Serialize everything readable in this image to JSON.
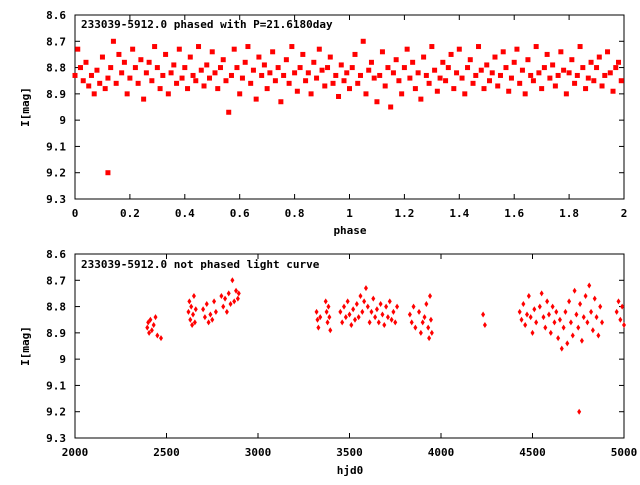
{
  "chart_data": [
    {
      "type": "scatter",
      "title": "233039-5912.0 phased with P=21.6180day",
      "xlabel": "phase",
      "ylabel": "I[mag]",
      "xlim": [
        0,
        2
      ],
      "ylim": [
        8.6,
        9.3
      ],
      "y_inverted": true,
      "grid": false,
      "color": "#ff0000",
      "xticks": [
        "0",
        "0.2",
        "0.4",
        "0.6",
        "0.8",
        "1",
        "1.2",
        "1.4",
        "1.6",
        "1.8",
        "2"
      ],
      "xtick_values": [
        0,
        0.2,
        0.4,
        0.6,
        0.8,
        1.0,
        1.2,
        1.4,
        1.6,
        1.8,
        2.0
      ],
      "yticks": [
        "8.6",
        "8.7",
        "8.8",
        "8.9",
        "9",
        "9.1",
        "9.2",
        "9.3"
      ],
      "ytick_values": [
        8.6,
        8.7,
        8.8,
        8.9,
        9.0,
        9.1,
        9.2,
        9.3
      ],
      "points": [
        [
          0.0,
          8.83
        ],
        [
          0.01,
          8.73
        ],
        [
          0.02,
          8.8
        ],
        [
          0.03,
          8.85
        ],
        [
          0.04,
          8.78
        ],
        [
          0.05,
          8.87
        ],
        [
          0.06,
          8.83
        ],
        [
          0.07,
          8.9
        ],
        [
          0.08,
          8.81
        ],
        [
          0.09,
          8.86
        ],
        [
          0.1,
          8.76
        ],
        [
          0.11,
          8.88
        ],
        [
          0.12,
          8.84
        ],
        [
          0.12,
          9.2
        ],
        [
          0.13,
          8.8
        ],
        [
          0.14,
          8.7
        ],
        [
          0.15,
          8.86
        ],
        [
          0.16,
          8.75
        ],
        [
          0.17,
          8.82
        ],
        [
          0.18,
          8.78
        ],
        [
          0.19,
          8.9
        ],
        [
          0.2,
          8.84
        ],
        [
          0.21,
          8.73
        ],
        [
          0.22,
          8.8
        ],
        [
          0.23,
          8.86
        ],
        [
          0.24,
          8.77
        ],
        [
          0.25,
          8.92
        ],
        [
          0.26,
          8.82
        ],
        [
          0.27,
          8.78
        ],
        [
          0.28,
          8.85
        ],
        [
          0.29,
          8.72
        ],
        [
          0.3,
          8.8
        ],
        [
          0.31,
          8.88
        ],
        [
          0.32,
          8.83
        ],
        [
          0.33,
          8.75
        ],
        [
          0.34,
          8.9
        ],
        [
          0.35,
          8.82
        ],
        [
          0.36,
          8.79
        ],
        [
          0.37,
          8.86
        ],
        [
          0.38,
          8.73
        ],
        [
          0.39,
          8.84
        ],
        [
          0.4,
          8.8
        ],
        [
          0.41,
          8.88
        ],
        [
          0.42,
          8.76
        ],
        [
          0.43,
          8.83
        ],
        [
          0.44,
          8.85
        ],
        [
          0.45,
          8.72
        ],
        [
          0.46,
          8.81
        ],
        [
          0.47,
          8.87
        ],
        [
          0.48,
          8.79
        ],
        [
          0.49,
          8.84
        ],
        [
          0.5,
          8.74
        ],
        [
          0.51,
          8.82
        ],
        [
          0.52,
          8.88
        ],
        [
          0.53,
          8.8
        ],
        [
          0.54,
          8.77
        ],
        [
          0.55,
          8.85
        ],
        [
          0.56,
          8.97
        ],
        [
          0.57,
          8.83
        ],
        [
          0.58,
          8.73
        ],
        [
          0.59,
          8.8
        ],
        [
          0.6,
          8.9
        ],
        [
          0.61,
          8.84
        ],
        [
          0.62,
          8.78
        ],
        [
          0.63,
          8.72
        ],
        [
          0.64,
          8.86
        ],
        [
          0.65,
          8.81
        ],
        [
          0.66,
          8.92
        ],
        [
          0.67,
          8.76
        ],
        [
          0.68,
          8.83
        ],
        [
          0.69,
          8.79
        ],
        [
          0.7,
          8.88
        ],
        [
          0.71,
          8.82
        ],
        [
          0.72,
          8.74
        ],
        [
          0.73,
          8.85
        ],
        [
          0.74,
          8.8
        ],
        [
          0.75,
          8.93
        ],
        [
          0.76,
          8.83
        ],
        [
          0.77,
          8.77
        ],
        [
          0.78,
          8.86
        ],
        [
          0.79,
          8.72
        ],
        [
          0.8,
          8.82
        ],
        [
          0.81,
          8.89
        ],
        [
          0.82,
          8.8
        ],
        [
          0.83,
          8.75
        ],
        [
          0.84,
          8.85
        ],
        [
          0.85,
          8.82
        ],
        [
          0.86,
          8.9
        ],
        [
          0.87,
          8.78
        ],
        [
          0.88,
          8.84
        ],
        [
          0.89,
          8.73
        ],
        [
          0.9,
          8.81
        ],
        [
          0.91,
          8.87
        ],
        [
          0.92,
          8.8
        ],
        [
          0.93,
          8.76
        ],
        [
          0.94,
          8.86
        ],
        [
          0.95,
          8.83
        ],
        [
          0.96,
          8.91
        ],
        [
          0.97,
          8.79
        ],
        [
          0.98,
          8.85
        ],
        [
          0.99,
          8.82
        ],
        [
          1.0,
          8.88
        ],
        [
          1.01,
          8.8
        ],
        [
          1.02,
          8.75
        ],
        [
          1.03,
          8.86
        ],
        [
          1.04,
          8.83
        ],
        [
          1.05,
          8.7
        ],
        [
          1.06,
          8.9
        ],
        [
          1.07,
          8.81
        ],
        [
          1.08,
          8.78
        ],
        [
          1.09,
          8.84
        ],
        [
          1.1,
          8.93
        ],
        [
          1.11,
          8.83
        ],
        [
          1.12,
          8.74
        ],
        [
          1.13,
          8.87
        ],
        [
          1.14,
          8.8
        ],
        [
          1.15,
          8.95
        ],
        [
          1.16,
          8.82
        ],
        [
          1.17,
          8.77
        ],
        [
          1.18,
          8.85
        ],
        [
          1.19,
          8.9
        ],
        [
          1.2,
          8.8
        ],
        [
          1.21,
          8.73
        ],
        [
          1.22,
          8.84
        ],
        [
          1.23,
          8.78
        ],
        [
          1.24,
          8.88
        ],
        [
          1.25,
          8.82
        ],
        [
          1.26,
          8.92
        ],
        [
          1.27,
          8.76
        ],
        [
          1.28,
          8.83
        ],
        [
          1.29,
          8.86
        ],
        [
          1.3,
          8.72
        ],
        [
          1.31,
          8.81
        ],
        [
          1.32,
          8.89
        ],
        [
          1.33,
          8.84
        ],
        [
          1.34,
          8.78
        ],
        [
          1.35,
          8.85
        ],
        [
          1.36,
          8.8
        ],
        [
          1.37,
          8.75
        ],
        [
          1.38,
          8.88
        ],
        [
          1.39,
          8.82
        ],
        [
          1.4,
          8.73
        ],
        [
          1.41,
          8.84
        ],
        [
          1.42,
          8.9
        ],
        [
          1.43,
          8.8
        ],
        [
          1.44,
          8.77
        ],
        [
          1.45,
          8.86
        ],
        [
          1.46,
          8.83
        ],
        [
          1.47,
          8.72
        ],
        [
          1.48,
          8.81
        ],
        [
          1.49,
          8.88
        ],
        [
          1.5,
          8.79
        ],
        [
          1.51,
          8.85
        ],
        [
          1.52,
          8.82
        ],
        [
          1.53,
          8.76
        ],
        [
          1.54,
          8.87
        ],
        [
          1.55,
          8.83
        ],
        [
          1.56,
          8.74
        ],
        [
          1.57,
          8.8
        ],
        [
          1.58,
          8.89
        ],
        [
          1.59,
          8.84
        ],
        [
          1.6,
          8.78
        ],
        [
          1.61,
          8.73
        ],
        [
          1.62,
          8.86
        ],
        [
          1.63,
          8.81
        ],
        [
          1.64,
          8.9
        ],
        [
          1.65,
          8.77
        ],
        [
          1.66,
          8.83
        ],
        [
          1.67,
          8.85
        ],
        [
          1.68,
          8.72
        ],
        [
          1.69,
          8.82
        ],
        [
          1.7,
          8.88
        ],
        [
          1.71,
          8.8
        ],
        [
          1.72,
          8.75
        ],
        [
          1.73,
          8.84
        ],
        [
          1.74,
          8.79
        ],
        [
          1.75,
          8.87
        ],
        [
          1.76,
          8.83
        ],
        [
          1.77,
          8.74
        ],
        [
          1.78,
          8.81
        ],
        [
          1.79,
          8.9
        ],
        [
          1.8,
          8.82
        ],
        [
          1.81,
          8.77
        ],
        [
          1.82,
          8.86
        ],
        [
          1.83,
          8.83
        ],
        [
          1.84,
          8.72
        ],
        [
          1.85,
          8.8
        ],
        [
          1.86,
          8.88
        ],
        [
          1.87,
          8.84
        ],
        [
          1.88,
          8.78
        ],
        [
          1.89,
          8.85
        ],
        [
          1.9,
          8.8
        ],
        [
          1.91,
          8.76
        ],
        [
          1.92,
          8.87
        ],
        [
          1.93,
          8.83
        ],
        [
          1.94,
          8.74
        ],
        [
          1.95,
          8.82
        ],
        [
          1.96,
          8.89
        ],
        [
          1.97,
          8.8
        ],
        [
          1.98,
          8.78
        ],
        [
          1.99,
          8.85
        ]
      ]
    },
    {
      "type": "scatter",
      "title": "233039-5912.0 not phased light curve",
      "xlabel": "hjd0",
      "ylabel": "I[mag]",
      "xlim": [
        2000,
        5000
      ],
      "ylim": [
        8.6,
        9.3
      ],
      "y_inverted": true,
      "grid": false,
      "color": "#ff0000",
      "xticks": [
        "2000",
        "2500",
        "3000",
        "3500",
        "4000",
        "4500",
        "5000"
      ],
      "xtick_values": [
        2000,
        2500,
        3000,
        3500,
        4000,
        4500,
        5000
      ],
      "yticks": [
        "8.6",
        "8.7",
        "8.8",
        "8.9",
        "9",
        "9.1",
        "9.2",
        "9.3"
      ],
      "ytick_values": [
        8.6,
        8.7,
        8.8,
        8.9,
        9.0,
        9.1,
        9.2,
        9.3
      ],
      "points": [
        [
          2395,
          8.88
        ],
        [
          2400,
          8.86
        ],
        [
          2405,
          8.9
        ],
        [
          2412,
          8.85
        ],
        [
          2420,
          8.89
        ],
        [
          2430,
          8.87
        ],
        [
          2440,
          8.84
        ],
        [
          2450,
          8.91
        ],
        [
          2470,
          8.92
        ],
        [
          2620,
          8.82
        ],
        [
          2625,
          8.78
        ],
        [
          2630,
          8.85
        ],
        [
          2635,
          8.8
        ],
        [
          2640,
          8.87
        ],
        [
          2645,
          8.83
        ],
        [
          2650,
          8.76
        ],
        [
          2655,
          8.86
        ],
        [
          2660,
          8.81
        ],
        [
          2700,
          8.81
        ],
        [
          2710,
          8.84
        ],
        [
          2720,
          8.79
        ],
        [
          2730,
          8.86
        ],
        [
          2740,
          8.83
        ],
        [
          2750,
          8.85
        ],
        [
          2760,
          8.78
        ],
        [
          2770,
          8.82
        ],
        [
          2800,
          8.76
        ],
        [
          2810,
          8.8
        ],
        [
          2820,
          8.77
        ],
        [
          2830,
          8.82
        ],
        [
          2840,
          8.75
        ],
        [
          2850,
          8.79
        ],
        [
          2860,
          8.7
        ],
        [
          2870,
          8.78
        ],
        [
          2880,
          8.74
        ],
        [
          2890,
          8.77
        ],
        [
          2895,
          8.75
        ],
        [
          3320,
          8.82
        ],
        [
          3325,
          8.85
        ],
        [
          3330,
          8.88
        ],
        [
          3340,
          8.84
        ],
        [
          3370,
          8.78
        ],
        [
          3375,
          8.82
        ],
        [
          3380,
          8.86
        ],
        [
          3385,
          8.8
        ],
        [
          3390,
          8.84
        ],
        [
          3395,
          8.89
        ],
        [
          3450,
          8.82
        ],
        [
          3460,
          8.86
        ],
        [
          3470,
          8.8
        ],
        [
          3480,
          8.84
        ],
        [
          3490,
          8.78
        ],
        [
          3500,
          8.83
        ],
        [
          3510,
          8.87
        ],
        [
          3520,
          8.81
        ],
        [
          3530,
          8.85
        ],
        [
          3540,
          8.79
        ],
        [
          3550,
          8.84
        ],
        [
          3560,
          8.76
        ],
        [
          3570,
          8.82
        ],
        [
          3580,
          8.78
        ],
        [
          3590,
          8.73
        ],
        [
          3600,
          8.8
        ],
        [
          3610,
          8.86
        ],
        [
          3620,
          8.82
        ],
        [
          3630,
          8.77
        ],
        [
          3640,
          8.84
        ],
        [
          3650,
          8.81
        ],
        [
          3660,
          8.86
        ],
        [
          3670,
          8.79
        ],
        [
          3680,
          8.83
        ],
        [
          3690,
          8.87
        ],
        [
          3700,
          8.8
        ],
        [
          3710,
          8.84
        ],
        [
          3720,
          8.78
        ],
        [
          3730,
          8.85
        ],
        [
          3740,
          8.82
        ],
        [
          3750,
          8.86
        ],
        [
          3760,
          8.8
        ],
        [
          3830,
          8.83
        ],
        [
          3840,
          8.86
        ],
        [
          3850,
          8.8
        ],
        [
          3860,
          8.88
        ],
        [
          3880,
          8.82
        ],
        [
          3890,
          8.9
        ],
        [
          3900,
          8.86
        ],
        [
          3910,
          8.84
        ],
        [
          3920,
          8.79
        ],
        [
          3930,
          8.88
        ],
        [
          3935,
          8.92
        ],
        [
          3940,
          8.76
        ],
        [
          3945,
          8.85
        ],
        [
          3950,
          8.9
        ],
        [
          4230,
          8.83
        ],
        [
          4240,
          8.87
        ],
        [
          4430,
          8.82
        ],
        [
          4440,
          8.85
        ],
        [
          4450,
          8.79
        ],
        [
          4460,
          8.87
        ],
        [
          4470,
          8.83
        ],
        [
          4480,
          8.76
        ],
        [
          4490,
          8.84
        ],
        [
          4500,
          8.9
        ],
        [
          4510,
          8.81
        ],
        [
          4520,
          8.86
        ],
        [
          4540,
          8.8
        ],
        [
          4550,
          8.75
        ],
        [
          4560,
          8.84
        ],
        [
          4570,
          8.88
        ],
        [
          4580,
          8.78
        ],
        [
          4590,
          8.83
        ],
        [
          4600,
          8.9
        ],
        [
          4610,
          8.8
        ],
        [
          4620,
          8.86
        ],
        [
          4630,
          8.82
        ],
        [
          4640,
          8.92
        ],
        [
          4650,
          8.85
        ],
        [
          4660,
          8.96
        ],
        [
          4670,
          8.88
        ],
        [
          4680,
          8.82
        ],
        [
          4690,
          8.94
        ],
        [
          4700,
          8.78
        ],
        [
          4710,
          8.86
        ],
        [
          4720,
          8.91
        ],
        [
          4730,
          8.74
        ],
        [
          4740,
          8.83
        ],
        [
          4750,
          8.88
        ],
        [
          4755,
          9.2
        ],
        [
          4760,
          8.79
        ],
        [
          4770,
          8.93
        ],
        [
          4780,
          8.84
        ],
        [
          4790,
          8.76
        ],
        [
          4800,
          8.86
        ],
        [
          4810,
          8.72
        ],
        [
          4820,
          8.82
        ],
        [
          4830,
          8.89
        ],
        [
          4840,
          8.77
        ],
        [
          4850,
          8.84
        ],
        [
          4860,
          8.91
        ],
        [
          4870,
          8.8
        ],
        [
          4880,
          8.86
        ],
        [
          4960,
          8.82
        ],
        [
          4970,
          8.78
        ],
        [
          4980,
          8.85
        ],
        [
          4990,
          8.8
        ],
        [
          5000,
          8.87
        ]
      ]
    }
  ]
}
